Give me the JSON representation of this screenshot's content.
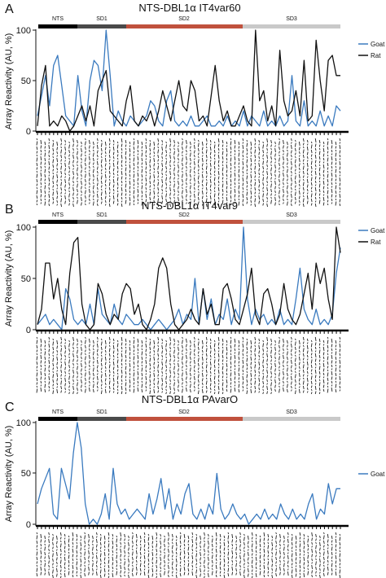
{
  "colors": {
    "goat": "#3a7abf",
    "rat": "#111111",
    "nts": "#000000",
    "sd1": "#4a4a4a",
    "sd2": "#c0513d",
    "sd3": "#c9c9c9"
  },
  "ylabel": "Array Reactivity (AU, %)",
  "chart_data": [
    {
      "panel": "A",
      "type": "line",
      "title": "NTS-DBL1α IT4var60",
      "ylabel": "Array Reactivity (AU, %)",
      "ylim": [
        0,
        100
      ],
      "yticks": [
        0,
        50,
        100
      ],
      "domains": [
        "NTS",
        "SD1",
        "SD2",
        "SD3"
      ],
      "series": [
        {
          "name": "Goat",
          "color": "#3a7abf",
          "values": [
            15,
            35,
            55,
            25,
            65,
            75,
            45,
            15,
            10,
            5,
            55,
            20,
            5,
            50,
            70,
            65,
            40,
            100,
            55,
            5,
            20,
            10,
            5,
            15,
            10,
            5,
            10,
            15,
            30,
            25,
            10,
            5,
            30,
            40,
            10,
            5,
            10,
            5,
            15,
            5,
            5,
            10,
            15,
            5,
            5,
            10,
            5,
            15,
            5,
            10,
            5,
            20,
            5,
            15,
            10,
            5,
            20,
            5,
            10,
            5,
            15,
            5,
            10,
            55,
            10,
            5,
            30,
            5,
            10,
            5,
            20,
            5,
            15,
            5,
            25,
            20
          ]
        },
        {
          "name": "Rat",
          "color": "#111111",
          "values": [
            5,
            45,
            65,
            5,
            10,
            5,
            15,
            10,
            0,
            5,
            15,
            25,
            10,
            25,
            5,
            40,
            50,
            60,
            20,
            15,
            10,
            5,
            30,
            45,
            10,
            5,
            15,
            10,
            20,
            5,
            20,
            40,
            25,
            10,
            30,
            50,
            25,
            20,
            50,
            40,
            10,
            15,
            5,
            35,
            65,
            30,
            10,
            20,
            5,
            5,
            15,
            25,
            10,
            5,
            100,
            30,
            40,
            10,
            25,
            5,
            80,
            30,
            15,
            20,
            40,
            15,
            70,
            10,
            15,
            90,
            50,
            20,
            70,
            75,
            55,
            55
          ]
        }
      ]
    },
    {
      "panel": "B",
      "type": "line",
      "title": "NTS-DBL1α IT4var9",
      "ylabel": "Array Reactivity (AU, %)",
      "ylim": [
        0,
        100
      ],
      "yticks": [
        0,
        50,
        100
      ],
      "domains": [
        "NTS",
        "SD1",
        "SD2",
        "SD3"
      ],
      "series": [
        {
          "name": "Goat",
          "color": "#3a7abf",
          "values": [
            5,
            10,
            15,
            5,
            10,
            5,
            0,
            40,
            30,
            10,
            5,
            10,
            5,
            25,
            5,
            40,
            15,
            10,
            5,
            25,
            10,
            5,
            15,
            10,
            5,
            5,
            10,
            5,
            0,
            5,
            10,
            5,
            0,
            5,
            10,
            20,
            5,
            15,
            10,
            50,
            5,
            40,
            10,
            30,
            5,
            15,
            10,
            30,
            5,
            20,
            10,
            100,
            30,
            5,
            20,
            10,
            15,
            5,
            10,
            5,
            20,
            5,
            10,
            5,
            30,
            60,
            20,
            10,
            5,
            20,
            5,
            10,
            5,
            15,
            55,
            80
          ]
        },
        {
          "name": "Rat",
          "color": "#111111",
          "values": [
            5,
            20,
            65,
            65,
            30,
            50,
            20,
            5,
            55,
            85,
            90,
            25,
            5,
            0,
            5,
            45,
            35,
            15,
            5,
            15,
            10,
            35,
            45,
            40,
            15,
            25,
            5,
            0,
            10,
            25,
            60,
            70,
            60,
            25,
            5,
            0,
            5,
            10,
            20,
            10,
            5,
            40,
            15,
            25,
            5,
            5,
            40,
            45,
            30,
            10,
            5,
            20,
            35,
            60,
            15,
            5,
            35,
            40,
            25,
            5,
            15,
            45,
            20,
            10,
            5,
            15,
            35,
            55,
            20,
            65,
            45,
            60,
            30,
            10,
            100,
            75
          ]
        }
      ]
    },
    {
      "panel": "C",
      "type": "line",
      "title": "NTS-DBL1α PAvarO",
      "ylabel": "Array Reactivity (AU, %)",
      "ylim": [
        0,
        100
      ],
      "yticks": [
        0,
        50,
        100
      ],
      "domains": [
        "NTS",
        "SD1",
        "SD2",
        "SD3"
      ],
      "series": [
        {
          "name": "Goat",
          "color": "#3a7abf",
          "values": [
            20,
            35,
            45,
            55,
            10,
            5,
            55,
            40,
            25,
            70,
            100,
            75,
            20,
            0,
            5,
            0,
            10,
            30,
            5,
            55,
            20,
            10,
            15,
            5,
            10,
            15,
            10,
            5,
            30,
            10,
            25,
            45,
            15,
            35,
            5,
            20,
            10,
            30,
            40,
            10,
            5,
            15,
            5,
            20,
            10,
            50,
            15,
            5,
            10,
            20,
            10,
            5,
            10,
            0,
            5,
            10,
            5,
            15,
            5,
            10,
            5,
            20,
            10,
            5,
            15,
            5,
            10,
            5,
            20,
            30,
            5,
            15,
            10,
            40,
            20,
            35,
            35
          ]
        }
      ]
    }
  ]
}
